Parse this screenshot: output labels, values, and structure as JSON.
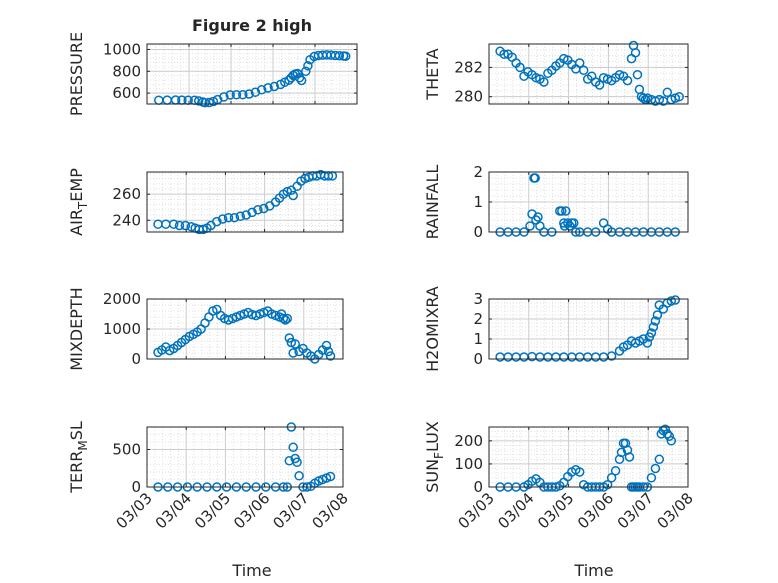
{
  "figure": {
    "title": "Figure 2 high",
    "xlabel": "Time",
    "marker_color": "#0072bd",
    "grid_color": "#d9d9d9",
    "axes_color": "#262626"
  },
  "chart_data": [
    {
      "type": "scatter",
      "title": "Figure 2 high",
      "ylabel": "PRESSURE",
      "xlabel": "",
      "xlim": [
        0,
        5
      ],
      "ylim": [
        500,
        1050
      ],
      "xticks": [
        0,
        1,
        2,
        3,
        4,
        5
      ],
      "xticklabels": [],
      "yticks": [
        600,
        800,
        1000
      ],
      "yticklabels": [
        "600",
        "800",
        "1000"
      ],
      "grid": true,
      "x": [
        0.0,
        0.2,
        0.4,
        0.55,
        0.7,
        0.85,
        0.95,
        1.05,
        1.1,
        1.2,
        1.3,
        1.4,
        1.55,
        1.7,
        1.85,
        2.0,
        2.15,
        2.3,
        2.45,
        2.6,
        2.75,
        2.9,
        3.0,
        3.1,
        3.15,
        3.2,
        3.25,
        3.3,
        3.35,
        3.4,
        3.5,
        3.55,
        3.6,
        3.7,
        3.8,
        3.9,
        4.0,
        4.1,
        4.2,
        4.3,
        4.4,
        4.45
      ],
      "y": [
        535,
        536,
        537,
        536,
        535,
        534,
        528,
        518,
        512,
        514,
        523,
        540,
        565,
        583,
        584,
        585,
        592,
        608,
        630,
        648,
        660,
        680,
        700,
        718,
        740,
        762,
        775,
        780,
        740,
        715,
        800,
        850,
        905,
        935,
        945,
        948,
        950,
        948,
        945,
        942,
        940,
        938
      ]
    },
    {
      "type": "scatter",
      "ylabel": "THETA",
      "xlabel": "",
      "xlim": [
        0,
        5
      ],
      "ylim": [
        279.5,
        283.6
      ],
      "xticks": [
        0,
        1,
        2,
        3,
        4,
        5
      ],
      "xticklabels": [],
      "yticks": [
        280,
        282
      ],
      "yticklabels": [
        "280",
        "282"
      ],
      "grid": true,
      "x": [
        0.0,
        0.1,
        0.2,
        0.3,
        0.4,
        0.5,
        0.6,
        0.7,
        0.8,
        0.9,
        1.0,
        1.1,
        1.2,
        1.3,
        1.4,
        1.5,
        1.6,
        1.7,
        1.8,
        1.9,
        2.0,
        2.1,
        2.2,
        2.3,
        2.4,
        2.5,
        2.6,
        2.7,
        2.8,
        2.9,
        3.0,
        3.1,
        3.2,
        3.3,
        3.35,
        3.4,
        3.45,
        3.5,
        3.55,
        3.6,
        3.65,
        3.7,
        3.8,
        3.9,
        4.0,
        4.1,
        4.2,
        4.3,
        4.4,
        4.5
      ],
      "y": [
        283.1,
        282.9,
        282.9,
        282.7,
        282.3,
        282.0,
        281.4,
        281.7,
        281.5,
        281.3,
        281.2,
        281.0,
        281.6,
        281.8,
        282.1,
        282.3,
        282.6,
        282.5,
        282.2,
        281.9,
        282.3,
        281.8,
        281.2,
        281.4,
        281.0,
        280.8,
        281.3,
        281.2,
        281.1,
        281.3,
        281.5,
        281.4,
        281.1,
        282.6,
        283.5,
        283.0,
        281.5,
        280.5,
        280.0,
        279.9,
        279.8,
        279.9,
        279.8,
        279.7,
        279.8,
        279.7,
        280.3,
        279.8,
        279.9,
        280.0
      ]
    },
    {
      "type": "scatter",
      "ylabel": "AIR_TEMP",
      "xlabel": "",
      "xlim": [
        0,
        5
      ],
      "ylim": [
        231,
        277
      ],
      "xticks": [
        0,
        1,
        2,
        3,
        4,
        5
      ],
      "xticklabels": [],
      "yticks": [
        240,
        260
      ],
      "yticklabels": [
        "240",
        "260"
      ],
      "grid": true,
      "x": [
        0.0,
        0.2,
        0.4,
        0.55,
        0.7,
        0.85,
        0.95,
        1.05,
        1.15,
        1.25,
        1.35,
        1.5,
        1.65,
        1.8,
        1.95,
        2.1,
        2.25,
        2.4,
        2.55,
        2.7,
        2.85,
        3.0,
        3.1,
        3.2,
        3.3,
        3.4,
        3.45,
        3.55,
        3.65,
        3.75,
        3.85,
        3.95,
        4.05,
        4.15,
        4.25,
        4.35,
        4.45
      ],
      "y": [
        237,
        237,
        237,
        236,
        236,
        235,
        234,
        233,
        233,
        234,
        236,
        239,
        241,
        242,
        242,
        243,
        244,
        246,
        248,
        249,
        251,
        254,
        257,
        260,
        262,
        263,
        259,
        266,
        270,
        272,
        273,
        274,
        274,
        275,
        274,
        274,
        274
      ]
    },
    {
      "type": "scatter",
      "ylabel": "RAINFALL",
      "xlabel": "",
      "xlim": [
        0,
        5
      ],
      "ylim": [
        0,
        2
      ],
      "xticks": [
        0,
        1,
        2,
        3,
        4,
        5
      ],
      "xticklabels": [],
      "yticks": [
        0,
        1,
        2
      ],
      "yticklabels": [
        "0",
        "1",
        "2"
      ],
      "grid": true,
      "x": [
        0.0,
        0.2,
        0.4,
        0.6,
        0.75,
        0.8,
        0.85,
        0.88,
        0.9,
        0.95,
        1.0,
        1.1,
        1.3,
        1.5,
        1.55,
        1.6,
        1.62,
        1.65,
        1.7,
        1.75,
        1.8,
        1.85,
        1.9,
        2.0,
        2.2,
        2.4,
        2.6,
        2.7,
        2.8,
        3.0,
        3.2,
        3.4,
        3.6,
        3.8,
        4.0,
        4.2,
        4.4
      ],
      "y": [
        0,
        0,
        0,
        0,
        0.2,
        0.6,
        1.8,
        1.8,
        0.4,
        0.5,
        0.2,
        0,
        0,
        0.7,
        0.7,
        0.3,
        0.2,
        0.7,
        0.3,
        0.2,
        0.3,
        0.3,
        0,
        0,
        0,
        0,
        0.3,
        0.1,
        0,
        0,
        0,
        0,
        0,
        0,
        0,
        0,
        0
      ]
    },
    {
      "type": "scatter",
      "ylabel": "MIXDEPTH",
      "xlabel": "",
      "xlim": [
        0,
        5
      ],
      "ylim": [
        0,
        2000
      ],
      "xticks": [
        0,
        1,
        2,
        3,
        4,
        5
      ],
      "xticklabels": [],
      "yticks": [
        0,
        1000,
        2000
      ],
      "yticklabels": [
        "0",
        "1000",
        "2000"
      ],
      "grid": true,
      "x": [
        0.0,
        0.1,
        0.2,
        0.3,
        0.4,
        0.5,
        0.6,
        0.7,
        0.8,
        0.9,
        1.0,
        1.1,
        1.2,
        1.3,
        1.4,
        1.5,
        1.6,
        1.7,
        1.8,
        1.9,
        2.0,
        2.1,
        2.2,
        2.3,
        2.4,
        2.5,
        2.6,
        2.7,
        2.8,
        2.9,
        3.0,
        3.1,
        3.15,
        3.2,
        3.25,
        3.3,
        3.35,
        3.4,
        3.45,
        3.5,
        3.6,
        3.7,
        3.8,
        3.9,
        4.0,
        4.1,
        4.2,
        4.3,
        4.35,
        4.4
      ],
      "y": [
        220,
        300,
        400,
        280,
        350,
        450,
        550,
        650,
        750,
        820,
        900,
        1000,
        1200,
        1400,
        1600,
        1650,
        1450,
        1350,
        1300,
        1350,
        1400,
        1450,
        1500,
        1550,
        1480,
        1450,
        1500,
        1550,
        1600,
        1500,
        1450,
        1400,
        1500,
        1350,
        1300,
        1350,
        700,
        550,
        200,
        500,
        250,
        350,
        200,
        100,
        0,
        150,
        300,
        450,
        250,
        100
      ]
    },
    {
      "type": "scatter",
      "ylabel": "H2OMIXRA",
      "xlabel": "",
      "xlim": [
        0,
        5
      ],
      "ylim": [
        0,
        3
      ],
      "xticks": [
        0,
        1,
        2,
        3,
        4,
        5
      ],
      "xticklabels": [],
      "yticks": [
        0,
        1,
        2,
        3
      ],
      "yticklabels": [
        "0",
        "1",
        "2",
        "3"
      ],
      "grid": true,
      "x": [
        0.0,
        0.2,
        0.4,
        0.6,
        0.8,
        1.0,
        1.2,
        1.4,
        1.6,
        1.8,
        2.0,
        2.2,
        2.4,
        2.6,
        2.8,
        3.0,
        3.1,
        3.2,
        3.3,
        3.4,
        3.5,
        3.6,
        3.7,
        3.75,
        3.8,
        3.85,
        3.9,
        3.95,
        4.0,
        4.1,
        4.2,
        4.3,
        4.4
      ],
      "y": [
        0.1,
        0.1,
        0.1,
        0.1,
        0.12,
        0.1,
        0.1,
        0.1,
        0.1,
        0.1,
        0.1,
        0.1,
        0.1,
        0.1,
        0.15,
        0.4,
        0.6,
        0.7,
        0.9,
        0.8,
        0.9,
        1.0,
        0.8,
        1.1,
        1.3,
        1.6,
        1.9,
        2.2,
        2.7,
        2.5,
        2.8,
        2.9,
        2.95
      ]
    },
    {
      "type": "scatter",
      "ylabel": "TERR_MSL",
      "xlabel": "Time",
      "xlim": [
        0,
        5
      ],
      "ylim": [
        0,
        800
      ],
      "xticks": [
        0,
        1,
        2,
        3,
        4,
        5
      ],
      "xticklabels": [
        "03/03",
        "03/04",
        "03/05",
        "03/06",
        "03/07",
        "03/08"
      ],
      "yticks": [
        0,
        500
      ],
      "yticklabels": [
        "0",
        "500"
      ],
      "grid": true,
      "x": [
        0.0,
        0.25,
        0.5,
        0.75,
        1.0,
        1.25,
        1.5,
        1.75,
        2.0,
        2.25,
        2.5,
        2.75,
        3.0,
        3.2,
        3.3,
        3.35,
        3.4,
        3.45,
        3.5,
        3.55,
        3.6,
        3.7,
        3.8,
        3.9,
        4.0,
        4.1,
        4.2,
        4.3,
        4.4
      ],
      "y": [
        0,
        0,
        0,
        0,
        0,
        0,
        0,
        0,
        0,
        0,
        0,
        0,
        0,
        0,
        0,
        350,
        800,
        530,
        380,
        330,
        150,
        0,
        0,
        10,
        50,
        80,
        100,
        120,
        140
      ]
    },
    {
      "type": "scatter",
      "ylabel": "SUN_FLUX",
      "xlabel": "Time",
      "xlim": [
        0,
        5
      ],
      "ylim": [
        0,
        260
      ],
      "xticks": [
        0,
        1,
        2,
        3,
        4,
        5
      ],
      "xticklabels": [
        "03/03",
        "03/04",
        "03/05",
        "03/06",
        "03/07",
        "03/08"
      ],
      "yticks": [
        0,
        100,
        200
      ],
      "yticklabels": [
        "0",
        "100",
        "200"
      ],
      "grid": true,
      "x": [
        0.0,
        0.2,
        0.4,
        0.6,
        0.7,
        0.8,
        0.9,
        1.0,
        1.1,
        1.2,
        1.3,
        1.4,
        1.5,
        1.6,
        1.7,
        1.8,
        1.9,
        2.0,
        2.1,
        2.2,
        2.3,
        2.4,
        2.5,
        2.6,
        2.7,
        2.8,
        2.9,
        3.0,
        3.05,
        3.1,
        3.15,
        3.2,
        3.25,
        3.3,
        3.35,
        3.4,
        3.45,
        3.5,
        3.6,
        3.7,
        3.8,
        3.9,
        4.0,
        4.05,
        4.1,
        4.15,
        4.2,
        4.25,
        4.3
      ],
      "y": [
        0,
        0,
        0,
        0,
        10,
        25,
        35,
        20,
        0,
        0,
        0,
        0,
        5,
        20,
        45,
        65,
        75,
        65,
        10,
        0,
        0,
        0,
        0,
        0,
        10,
        40,
        70,
        120,
        150,
        190,
        190,
        160,
        130,
        0,
        0,
        0,
        0,
        0,
        0,
        0,
        40,
        80,
        120,
        230,
        245,
        250,
        230,
        220,
        200
      ]
    }
  ]
}
